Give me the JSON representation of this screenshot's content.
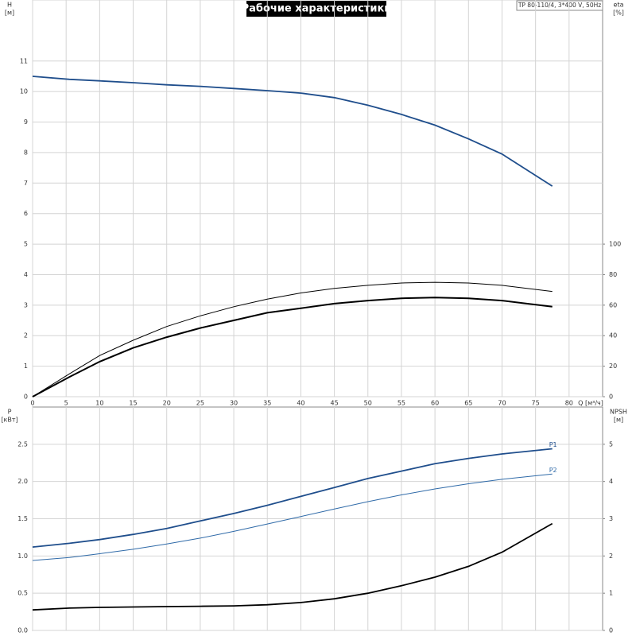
{
  "chart_data": [
    {
      "type": "line",
      "title": "Рабочие характеристики",
      "subtitle": "TP 80-110/4, 3*400 V, 50Hz",
      "ylabel": "H",
      "yunit": "[м]",
      "y2label": "eta",
      "y2unit": "[%]",
      "xlabel": "Q [м³/ч]",
      "x": [
        0,
        5.5,
        10,
        15,
        20,
        25,
        30,
        35,
        40,
        45,
        50,
        55,
        60,
        65,
        70,
        77.5
      ],
      "xlim": [
        0,
        85
      ],
      "xticks": [
        0,
        5,
        10,
        15,
        20,
        25,
        30,
        35,
        40,
        45,
        50,
        55,
        60,
        65,
        70,
        75,
        80
      ],
      "ylim": [
        0,
        13
      ],
      "yticks": [
        0,
        1,
        2,
        3,
        4,
        5,
        6,
        7,
        8,
        9,
        10,
        11
      ],
      "y2lim": [
        0,
        260
      ],
      "y2ticks": [
        0,
        20,
        40,
        60,
        80,
        100
      ],
      "grid": true,
      "series": [
        {
          "color": "#1f4e8c",
          "width": 1.8,
          "values": [
            10.5,
            10.4,
            10.35,
            10.29,
            10.22,
            10.17,
            10.1,
            10.03,
            9.95,
            9.8,
            9.55,
            9.25,
            8.9,
            8.45,
            7.95,
            6.9
          ]
        },
        {
          "color": "#000000",
          "width": 1,
          "axis": "y2",
          "values": [
            0,
            15,
            27,
            37,
            46,
            53,
            59,
            64,
            68,
            71,
            73,
            74.5,
            75,
            74.5,
            73,
            69
          ]
        },
        {
          "color": "#000000",
          "width": 2,
          "axis": "y2",
          "values": [
            0,
            13,
            23,
            32,
            39,
            45,
            50,
            55,
            58,
            61,
            63,
            64.5,
            65,
            64.5,
            63,
            59
          ]
        }
      ]
    },
    {
      "type": "line",
      "ylabel": "P",
      "yunit": "[кВт]",
      "y2label": "NPSH",
      "y2unit": "[м]",
      "x": [
        0,
        5.5,
        10,
        15,
        20,
        25,
        30,
        35,
        40,
        45,
        50,
        55,
        60,
        65,
        70,
        77.5
      ],
      "xlim": [
        0,
        85
      ],
      "ylim": [
        0,
        3
      ],
      "yticks": [
        {
          "value": 0,
          "label": "0.0"
        },
        0.5,
        {
          "value": 1,
          "label": "1.0"
        },
        1.5,
        {
          "value": 2,
          "label": "2.0"
        },
        2.5
      ],
      "y2lim": [
        0,
        6
      ],
      "y2ticks": [
        0,
        1,
        2,
        3,
        4,
        5
      ],
      "grid": true,
      "series": [
        {
          "name": "P1",
          "color": "#1f4e8c",
          "width": 1.8,
          "values": [
            1.12,
            1.17,
            1.22,
            1.29,
            1.37,
            1.47,
            1.57,
            1.68,
            1.8,
            1.92,
            2.04,
            2.14,
            2.24,
            2.31,
            2.37,
            2.44
          ]
        },
        {
          "name": "P2",
          "color": "#2f6aa8",
          "width": 1,
          "values": [
            0.94,
            0.98,
            1.03,
            1.09,
            1.16,
            1.24,
            1.33,
            1.43,
            1.53,
            1.63,
            1.73,
            1.82,
            1.9,
            1.97,
            2.03,
            2.1
          ]
        },
        {
          "color": "#000000",
          "width": 1.8,
          "axis": "y2",
          "values": [
            0.55,
            0.6,
            0.62,
            0.63,
            0.64,
            0.65,
            0.66,
            0.69,
            0.75,
            0.85,
            1.0,
            1.2,
            1.43,
            1.72,
            2.1,
            2.87
          ]
        }
      ]
    }
  ]
}
